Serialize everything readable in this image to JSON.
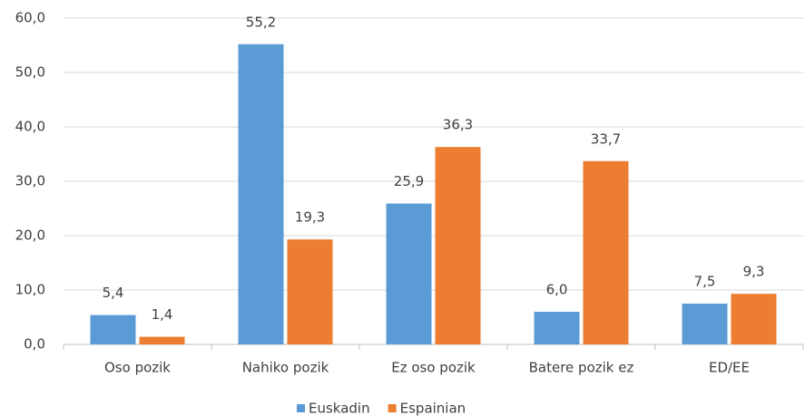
{
  "chart_data": {
    "type": "bar",
    "categories": [
      "Oso pozik",
      "Nahiko pozik",
      "Ez oso pozik",
      "Batere pozik ez",
      "ED/EE"
    ],
    "series": [
      {
        "name": "Euskadin",
        "color": "#5b9bd5",
        "values": [
          5.4,
          55.2,
          25.9,
          6.0,
          7.5
        ],
        "value_labels": [
          "5,4",
          "55,2",
          "25,9",
          "6,0",
          "7,5"
        ]
      },
      {
        "name": "Espainian",
        "color": "#ed7d31",
        "values": [
          1.4,
          19.3,
          36.3,
          33.7,
          9.3
        ],
        "value_labels": [
          "1,4",
          "19,3",
          "36,3",
          "33,7",
          "9,3"
        ]
      }
    ],
    "ylim": [
      0,
      60
    ],
    "yticks": [
      {
        "value": 0,
        "label": "0,0"
      },
      {
        "value": 10,
        "label": "10,0"
      },
      {
        "value": 20,
        "label": "20,0"
      },
      {
        "value": 30,
        "label": "30,0"
      },
      {
        "value": 40,
        "label": "40,0"
      },
      {
        "value": 50,
        "label": "50,0"
      },
      {
        "value": 60,
        "label": "60,0"
      }
    ],
    "grid": true,
    "legend": "bottom"
  }
}
